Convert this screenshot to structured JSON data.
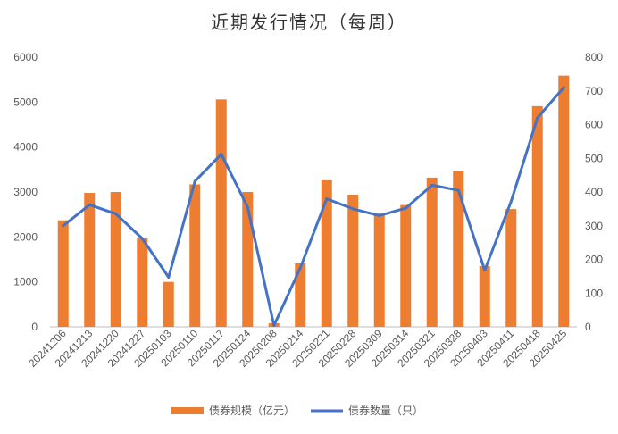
{
  "chart_data": {
    "type": "bar",
    "title": "近期发行情况（每周）",
    "categories": [
      "20241206",
      "20241213",
      "20241220",
      "20241227",
      "20250103",
      "20250110",
      "20250117",
      "20250124",
      "20250208",
      "20250214",
      "20250221",
      "20250228",
      "20250309",
      "20250314",
      "20250321",
      "20250328",
      "20250403",
      "20250411",
      "20250418",
      "20250425"
    ],
    "series": [
      {
        "name": "债券规模（亿元）",
        "type": "bar",
        "axis": "left",
        "color": "#ED7D31",
        "values": [
          2370,
          2980,
          3000,
          1970,
          1000,
          3170,
          5060,
          3000,
          80,
          1410,
          3260,
          2940,
          2520,
          2710,
          3320,
          3470,
          1350,
          2620,
          4910,
          5590
        ]
      },
      {
        "name": "债券数量（只）",
        "type": "line",
        "axis": "right",
        "color": "#4472C4",
        "values": [
          300,
          362,
          335,
          262,
          147,
          432,
          512,
          355,
          4,
          175,
          380,
          350,
          330,
          352,
          420,
          405,
          168,
          372,
          620,
          710
        ]
      }
    ],
    "y_left": {
      "min": 0,
      "max": 6000,
      "ticks": [
        "0",
        "1000",
        "2000",
        "3000",
        "4000",
        "5000",
        "6000"
      ]
    },
    "y_right": {
      "min": 0,
      "max": 800,
      "ticks": [
        "0",
        "100",
        "200",
        "300",
        "400",
        "500",
        "600",
        "700",
        "800"
      ]
    },
    "grid": false,
    "legend_position": "bottom"
  }
}
